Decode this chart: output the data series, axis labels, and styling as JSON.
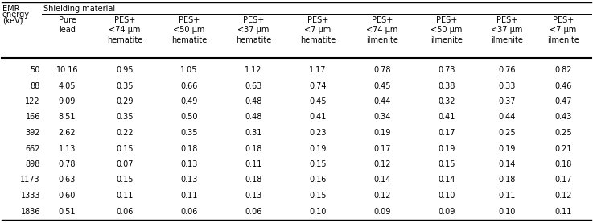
{
  "title_col1_line1": "EMR",
  "title_col1_line2": "energy",
  "title_col1_line3": "(keV)",
  "header_main": "Shielding material",
  "col_headers": [
    "Pure\nlead",
    "PES+\n<74 μm\nhematite",
    "PES+\n<50 μm\nhematite",
    "PES+\n<37 μm\nhematite",
    "PES+\n<7 μm\nhematite",
    "PES+\n<74 μm\nilmenite",
    "PES+\n<50 μm\nilmenite",
    "PES+\n<37 μm\nilmenite",
    "PES+\n<7 μm\nilmenite"
  ],
  "row_labels": [
    "50",
    "88",
    "122",
    "166",
    "392",
    "662",
    "898",
    "1173",
    "1333",
    "1836"
  ],
  "table_data": [
    [
      "10.16",
      "0.95",
      "1.05",
      "1.12",
      "1.17",
      "0.78",
      "0.73",
      "0.76",
      "0.82"
    ],
    [
      "4.05",
      "0.35",
      "0.66",
      "0.63",
      "0.74",
      "0.45",
      "0.38",
      "0.33",
      "0.46"
    ],
    [
      "9.09",
      "0.29",
      "0.49",
      "0.48",
      "0.45",
      "0.44",
      "0.32",
      "0.37",
      "0.47"
    ],
    [
      "8.51",
      "0.35",
      "0.50",
      "0.48",
      "0.41",
      "0.34",
      "0.41",
      "0.44",
      "0.43"
    ],
    [
      "2.62",
      "0.22",
      "0.35",
      "0.31",
      "0.23",
      "0.19",
      "0.17",
      "0.25",
      "0.25"
    ],
    [
      "1.13",
      "0.15",
      "0.18",
      "0.18",
      "0.19",
      "0.17",
      "0.19",
      "0.19",
      "0.21"
    ],
    [
      "0.78",
      "0.07",
      "0.13",
      "0.11",
      "0.15",
      "0.12",
      "0.15",
      "0.14",
      "0.18"
    ],
    [
      "0.63",
      "0.15",
      "0.13",
      "0.18",
      "0.16",
      "0.14",
      "0.14",
      "0.18",
      "0.17"
    ],
    [
      "0.60",
      "0.11",
      "0.11",
      "0.13",
      "0.15",
      "0.12",
      "0.10",
      "0.11",
      "0.12"
    ],
    [
      "0.51",
      "0.06",
      "0.06",
      "0.06",
      "0.10",
      "0.09",
      "0.09",
      "0.10",
      "0.11"
    ]
  ],
  "font_size": 7.0,
  "bg_color": "#ffffff",
  "text_color": "#000000",
  "figsize": [
    7.37,
    2.77
  ],
  "dpi": 100
}
